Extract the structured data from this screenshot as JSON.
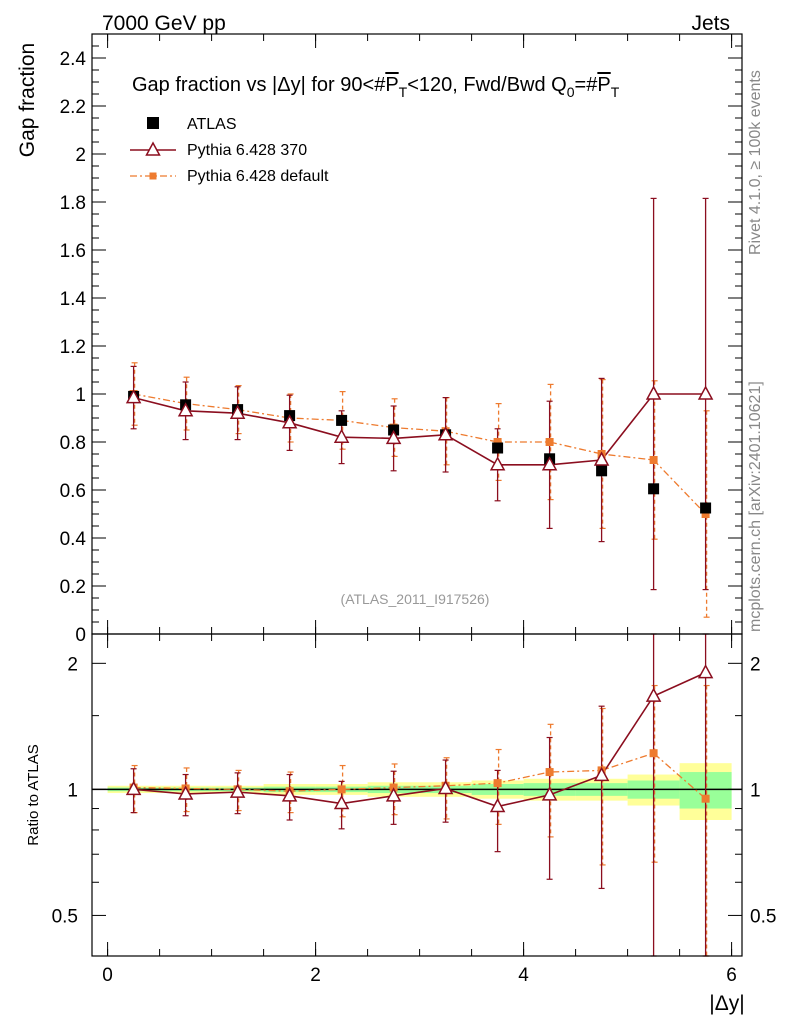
{
  "header": {
    "left_label": "7000 GeV pp",
    "right_label": "Jets"
  },
  "side_labels": {
    "rivet": "Rivet 4.1.0, ≥ 100k events",
    "mcplots": "mcplots.cern.ch [arXiv:2401.10621]"
  },
  "chart_data": [
    {
      "type": "scatter",
      "panel": "main",
      "title": "Gap fraction vs |Δy| for 90<#P_T<120, Fwd/Bwd Q_0=#P_T",
      "title_parts": {
        "t1": "Gap fraction vs |Δy| for 90<#",
        "t2": "P",
        "t3": "T",
        "t4": "<120, Fwd/Bwd Q",
        "t5": "0",
        "t6": "=#",
        "t7": "P",
        "t8": "T"
      },
      "ylabel": "Gap fraction",
      "xlabel": "|Δy|",
      "watermark": "(ATLAS_2011_I917526)",
      "xlim": [
        -0.15,
        6.1
      ],
      "ylim": [
        0,
        2.5
      ],
      "x_ticks": [
        "0",
        "2",
        "4",
        "6"
      ],
      "y_ticks": [
        "0",
        "0.2",
        "0.4",
        "0.6",
        "0.8",
        "1",
        "1.2",
        "1.4",
        "1.6",
        "1.8",
        "2",
        "2.2",
        "2.4"
      ],
      "x": [
        0.25,
        0.75,
        1.25,
        1.75,
        2.25,
        2.75,
        3.25,
        3.75,
        4.25,
        4.75,
        5.25,
        5.75
      ],
      "series": [
        {
          "name": "ATLAS",
          "color": "#000000",
          "values": [
            0.99,
            0.955,
            0.935,
            0.91,
            0.89,
            0.85,
            0.83,
            0.775,
            0.73,
            0.68,
            0.605,
            0.525
          ],
          "err": [
            0.005,
            0.005,
            0.005,
            0.005,
            0.005,
            0.005,
            0.005,
            0.005,
            0.005,
            0.005,
            0.005,
            0.005
          ]
        },
        {
          "name": "Pythia 6.428 370",
          "color": "#8b0e1f",
          "values": [
            0.985,
            0.93,
            0.92,
            0.88,
            0.82,
            0.815,
            0.83,
            0.705,
            0.705,
            0.725,
            1.0,
            1.0
          ],
          "err": [
            0.13,
            0.12,
            0.11,
            0.115,
            0.11,
            0.135,
            0.155,
            0.15,
            0.265,
            0.34,
            0.815,
            0.815
          ]
        },
        {
          "name": "Pythia 6.428 default",
          "color": "#ee7b2f",
          "values": [
            1.0,
            0.96,
            0.935,
            0.9,
            0.89,
            0.86,
            0.845,
            0.8,
            0.8,
            0.75,
            0.725,
            0.5
          ],
          "err": [
            0.13,
            0.11,
            0.1,
            0.1,
            0.12,
            0.12,
            0.14,
            0.16,
            0.24,
            0.31,
            0.33,
            0.43
          ]
        }
      ]
    },
    {
      "type": "scatter",
      "panel": "ratio",
      "ylabel": "Ratio to ATLAS",
      "ylim_log": [
        0.4,
        2.35
      ],
      "y_ticks": [
        "0.5",
        "1",
        "2"
      ],
      "x_edges": [
        0,
        0.5,
        1,
        1.5,
        2,
        2.5,
        3,
        3.5,
        4,
        4.5,
        5,
        5.5,
        6
      ],
      "band_outer": [
        0.02,
        0.02,
        0.02,
        0.03,
        0.03,
        0.04,
        0.04,
        0.05,
        0.06,
        0.06,
        0.085,
        0.155
      ],
      "band_inner": [
        0.01,
        0.01,
        0.01,
        0.015,
        0.015,
        0.02,
        0.02,
        0.03,
        0.035,
        0.035,
        0.05,
        0.1
      ],
      "band_colors": {
        "outer": "#ffff99",
        "inner": "#99ff99"
      },
      "series": [
        {
          "name": "Pythia 6.428 370",
          "color": "#8b0e1f",
          "values": [
            1.0,
            0.975,
            0.985,
            0.965,
            0.925,
            0.965,
            1.005,
            0.91,
            0.97,
            1.08,
            1.67,
            1.9
          ],
          "err": [
            0.12,
            0.11,
            0.11,
            0.12,
            0.12,
            0.14,
            0.17,
            0.2,
            0.36,
            0.5,
            1.35,
            1.55
          ]
        },
        {
          "name": "Pythia 6.428 default",
          "color": "#ee7b2f",
          "values": [
            1.01,
            1.005,
            1.0,
            0.99,
            1.0,
            1.01,
            1.02,
            1.035,
            1.1,
            1.11,
            1.22,
            0.95
          ],
          "err": [
            0.13,
            0.12,
            0.11,
            0.11,
            0.14,
            0.14,
            0.17,
            0.21,
            0.33,
            0.45,
            0.55,
            0.82
          ]
        }
      ]
    }
  ]
}
